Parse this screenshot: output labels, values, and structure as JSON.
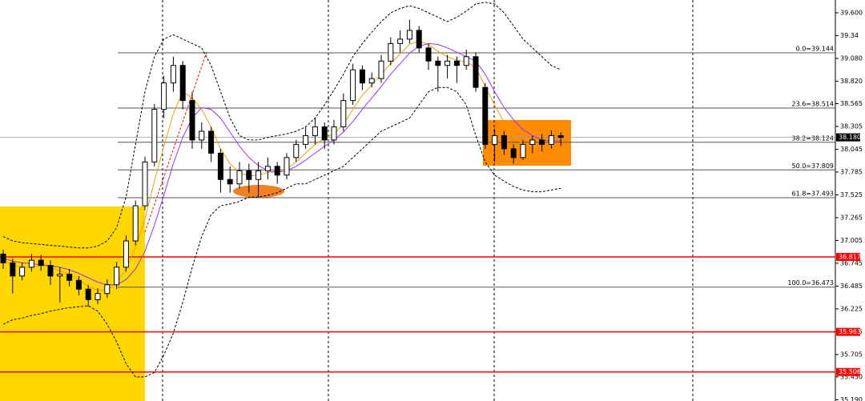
{
  "chart_data": {
    "type": "candlestick",
    "ylim": [
      35.175,
      39.746
    ],
    "yticks": [
      {
        "value": 39.6,
        "label": "39.600"
      },
      39.34,
      {
        "value": 39.08,
        "label": "39.080"
      },
      {
        "value": 38.82,
        "label": "38.820"
      },
      38.565,
      38.305,
      38.045,
      37.785,
      37.525,
      37.265,
      37.005,
      36.745,
      36.485,
      36.225,
      35.965,
      35.705,
      {
        "value": 35.45,
        "label": "35.450"
      },
      {
        "value": 35.19,
        "label": "35.190"
      }
    ],
    "up_color": "#ffffff",
    "down_color": "#000000",
    "candles": [
      [
        36.85,
        36.9,
        36.68,
        36.75
      ],
      [
        36.75,
        36.8,
        36.4,
        36.6
      ],
      [
        36.6,
        36.75,
        36.55,
        36.7
      ],
      [
        36.7,
        36.85,
        36.65,
        36.78
      ],
      [
        36.78,
        36.84,
        36.66,
        36.72
      ],
      [
        36.72,
        36.78,
        36.5,
        36.6
      ],
      [
        36.6,
        36.7,
        36.3,
        36.62
      ],
      [
        36.62,
        36.68,
        36.48,
        36.55
      ],
      [
        36.55,
        36.6,
        36.38,
        36.45
      ],
      [
        36.45,
        36.5,
        36.25,
        36.33
      ],
      [
        36.33,
        36.46,
        36.28,
        36.4
      ],
      [
        36.4,
        36.56,
        36.35,
        36.5
      ],
      [
        36.5,
        36.76,
        36.45,
        36.7
      ],
      [
        36.7,
        37.06,
        36.65,
        37.0
      ],
      [
        37.0,
        37.46,
        36.95,
        37.4
      ],
      [
        37.4,
        37.96,
        37.35,
        37.9
      ],
      [
        37.9,
        38.56,
        37.85,
        38.5
      ],
      [
        38.5,
        38.88,
        38.4,
        38.8
      ],
      [
        38.8,
        39.1,
        38.7,
        39.0
      ],
      [
        39.0,
        39.05,
        38.5,
        38.6
      ],
      [
        38.6,
        38.7,
        38.05,
        38.15
      ],
      [
        38.15,
        38.35,
        38.05,
        38.25
      ],
      [
        38.25,
        38.3,
        37.9,
        38.0
      ],
      [
        38.0,
        38.05,
        37.55,
        37.7
      ],
      [
        37.7,
        37.85,
        37.55,
        37.65
      ],
      [
        37.65,
        37.9,
        37.6,
        37.8
      ],
      [
        37.8,
        37.88,
        37.55,
        37.7
      ],
      [
        37.7,
        37.9,
        37.5,
        37.8
      ],
      [
        37.8,
        37.95,
        37.7,
        37.85
      ],
      [
        37.85,
        37.9,
        37.65,
        37.75
      ],
      [
        37.75,
        38.0,
        37.7,
        37.95
      ],
      [
        37.95,
        38.15,
        37.9,
        38.1
      ],
      [
        38.1,
        38.3,
        38.05,
        38.2
      ],
      [
        38.2,
        38.4,
        38.1,
        38.3
      ],
      [
        38.3,
        38.35,
        38.05,
        38.15
      ],
      [
        38.15,
        38.38,
        38.1,
        38.3
      ],
      [
        38.3,
        38.68,
        38.25,
        38.6
      ],
      [
        38.6,
        39.02,
        38.55,
        38.95
      ],
      [
        38.95,
        39.0,
        38.72,
        38.8
      ],
      [
        38.8,
        38.92,
        38.75,
        38.85
      ],
      [
        38.85,
        39.12,
        38.8,
        39.05
      ],
      [
        39.05,
        39.32,
        39.0,
        39.25
      ],
      [
        39.25,
        39.4,
        39.15,
        39.3
      ],
      [
        39.3,
        39.52,
        39.25,
        39.4
      ],
      [
        39.4,
        39.45,
        39.15,
        39.2
      ],
      [
        39.2,
        39.25,
        38.95,
        39.05
      ],
      [
        39.05,
        39.1,
        38.7,
        39.0
      ],
      [
        39.0,
        39.12,
        38.85,
        39.05
      ],
      [
        39.05,
        39.1,
        38.8,
        39.0
      ],
      [
        39.0,
        39.18,
        38.95,
        39.1
      ],
      [
        39.1,
        39.15,
        38.7,
        38.75
      ],
      [
        38.75,
        38.8,
        38.05,
        38.1
      ],
      [
        38.1,
        38.28,
        37.9,
        38.2
      ],
      [
        38.2,
        38.25,
        37.98,
        38.05
      ],
      [
        38.05,
        38.1,
        37.88,
        37.95
      ],
      [
        37.95,
        38.15,
        37.92,
        38.1
      ],
      [
        38.1,
        38.2,
        38.0,
        38.15
      ],
      [
        38.15,
        38.22,
        38.02,
        38.1
      ],
      [
        38.1,
        38.26,
        38.05,
        38.2
      ],
      [
        38.2,
        38.24,
        38.08,
        38.18
      ]
    ],
    "overlays": [
      {
        "color": "#f0a000",
        "dashed": false,
        "values": [
          36.78,
          36.72,
          36.7,
          36.7,
          36.72,
          36.7,
          36.66,
          36.62,
          36.56,
          36.48,
          36.44,
          36.44,
          36.52,
          36.68,
          36.92,
          37.25,
          37.68,
          38.08,
          38.45,
          38.7,
          38.63,
          38.5,
          38.3,
          38.05,
          37.88,
          37.78,
          37.74,
          37.75,
          37.78,
          37.79,
          37.82,
          37.9,
          38.0,
          38.1,
          38.17,
          38.22,
          38.33,
          38.5,
          38.66,
          38.78,
          38.9,
          39.02,
          39.13,
          39.24,
          39.28,
          39.24,
          39.16,
          39.1,
          39.06,
          39.04,
          38.98,
          38.76,
          38.55,
          38.35,
          38.2,
          38.1,
          38.08,
          38.08,
          38.12,
          38.15
        ]
      },
      {
        "color": "#9b30ff",
        "dashed": false,
        "values": [
          36.8,
          36.77,
          36.75,
          36.74,
          36.73,
          36.72,
          36.7,
          36.67,
          36.63,
          36.58,
          36.53,
          36.5,
          36.5,
          36.56,
          36.68,
          36.88,
          37.18,
          37.52,
          37.88,
          38.18,
          38.4,
          38.52,
          38.5,
          38.4,
          38.24,
          38.08,
          37.95,
          37.86,
          37.8,
          37.78,
          37.8,
          37.85,
          37.92,
          38.0,
          38.08,
          38.15,
          38.24,
          38.36,
          38.5,
          38.63,
          38.76,
          38.9,
          39.02,
          39.14,
          39.22,
          39.25,
          39.24,
          39.2,
          39.15,
          39.1,
          39.05,
          38.9,
          38.7,
          38.52,
          38.38,
          38.27,
          38.2,
          38.15,
          38.14,
          38.14
        ]
      },
      {
        "color": "#000000",
        "dashed": true,
        "values": [
          37.05,
          37.0,
          36.98,
          36.97,
          36.96,
          36.95,
          36.94,
          36.93,
          36.92,
          36.92,
          36.94,
          37.0,
          37.15,
          37.5,
          38.1,
          38.7,
          39.1,
          39.3,
          39.35,
          39.3,
          39.25,
          39.2,
          39.0,
          38.7,
          38.4,
          38.2,
          38.15,
          38.15,
          38.18,
          38.2,
          38.22,
          38.25,
          38.3,
          38.4,
          38.55,
          38.72,
          38.9,
          39.1,
          39.25,
          39.38,
          39.5,
          39.6,
          39.65,
          39.68,
          39.65,
          39.6,
          39.55,
          39.5,
          39.55,
          39.62,
          39.7,
          39.72,
          39.7,
          39.6,
          39.45,
          39.3,
          39.2,
          39.1,
          39.0,
          38.95
        ]
      },
      {
        "color": "#000000",
        "dashed": true,
        "values": [
          36.05,
          36.1,
          36.12,
          36.15,
          36.17,
          36.2,
          36.22,
          36.24,
          36.25,
          36.26,
          36.2,
          36.05,
          35.85,
          35.6,
          35.45,
          35.45,
          35.5,
          35.7,
          35.95,
          36.3,
          36.7,
          37.05,
          37.3,
          37.4,
          37.42,
          37.45,
          37.5,
          37.5,
          37.52,
          37.55,
          37.6,
          37.65,
          37.65,
          37.7,
          37.75,
          37.8,
          37.85,
          37.95,
          38.05,
          38.15,
          38.25,
          38.3,
          38.35,
          38.4,
          38.55,
          38.7,
          38.75,
          38.75,
          38.7,
          38.55,
          38.2,
          37.9,
          37.75,
          37.68,
          37.62,
          37.58,
          37.56,
          37.56,
          37.58,
          37.6
        ]
      }
    ],
    "fib_levels": [
      {
        "value": 39.144,
        "label": "0.0=39.144"
      },
      {
        "value": 38.514,
        "label": "23.6=38.514"
      },
      {
        "value": 38.124,
        "label": "38.2=38.124"
      },
      {
        "value": 37.809,
        "label": "50.0=37.809"
      },
      {
        "value": 37.493,
        "label": "61.8=37.493"
      },
      {
        "value": 36.473,
        "label": "100.0=36.473"
      }
    ],
    "hlines": [
      {
        "value": 36.817,
        "label": "36.817",
        "color": "#ff0000"
      },
      {
        "value": 35.963,
        "label": "35.963",
        "color": "#ff0000"
      },
      {
        "value": 35.506,
        "label": "35.506",
        "color": "#ff0000"
      }
    ],
    "last_price": {
      "value": 38.18,
      "label": "38.180"
    }
  }
}
